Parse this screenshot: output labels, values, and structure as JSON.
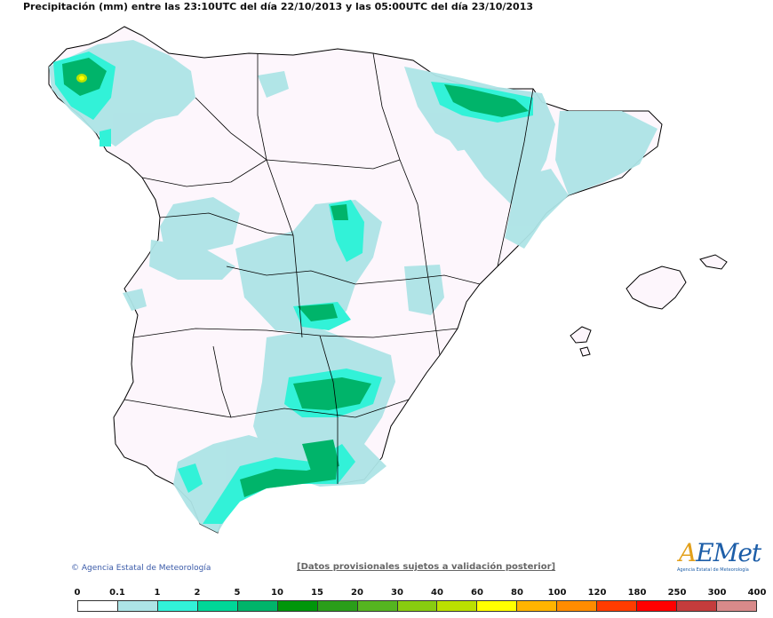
{
  "title": "Precipitación (mm) entre las 23:10UTC del día 22/10/2013 y las 05:00UTC del día 23/10/2013",
  "credit": "Agencia Estatal de Meteorología",
  "notice": "[Datos provisionales sujetos a validación posterior]",
  "logo": {
    "name": "AEMet",
    "subtitle": "Agencia Estatal de Meteorología"
  },
  "legend": {
    "labels": [
      "0",
      "0.1",
      "1",
      "2",
      "5",
      "10",
      "15",
      "20",
      "30",
      "40",
      "60",
      "80",
      "100",
      "120",
      "180",
      "250",
      "300",
      "400"
    ],
    "colors": [
      "#ffffff",
      "#ade4e6",
      "#32f2d8",
      "#00d798",
      "#00b46a",
      "#00960a",
      "#2a9e1a",
      "#55b520",
      "#88cc10",
      "#bbe000",
      "#ffff00",
      "#ffb400",
      "#ff8c00",
      "#ff3c00",
      "#ff0000",
      "#c43c3c",
      "#d88a8a",
      "#f2c8c8"
    ]
  },
  "colors": {
    "land": "#fdf6fc",
    "light_rain": "#ade4e6",
    "moderate": "#32f2d8",
    "heavy": "#00b46a",
    "border": "#000000"
  }
}
